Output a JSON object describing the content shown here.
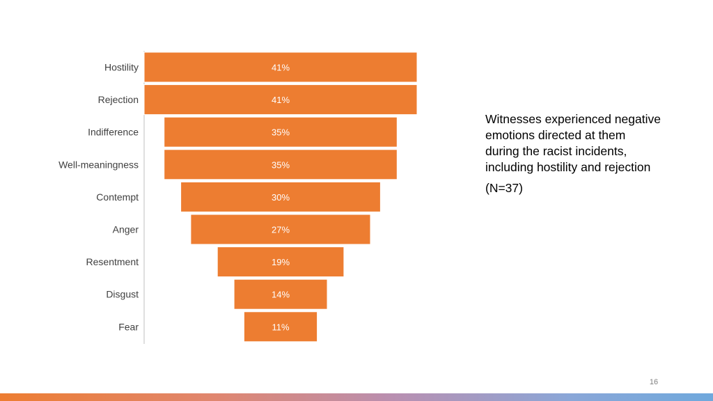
{
  "chart_data": {
    "type": "bar",
    "orientation": "horizontal-funnel",
    "categories": [
      "Hostility",
      "Rejection",
      "Indifference",
      "Well-meaningness",
      "Contempt",
      "Anger",
      "Resentment",
      "Disgust",
      "Fear"
    ],
    "values": [
      41,
      41,
      35,
      35,
      30,
      27,
      19,
      14,
      11
    ],
    "value_labels": [
      "41%",
      "41%",
      "35%",
      "35%",
      "30%",
      "27%",
      "19%",
      "14%",
      "11%"
    ],
    "unit": "%",
    "grid": false,
    "legend": "none",
    "bar_color": "#ed7d31"
  },
  "notes": {
    "line1": "Witnesses experienced negative",
    "line2": "emotions directed at them",
    "line3": "during the racist incidents,",
    "line4": "including hostility and rejection",
    "sample": "(N=37)"
  },
  "slide_number": "16",
  "colors": {
    "bar": "#ed7d31",
    "label": "#404040",
    "axis": "#bfbfbf"
  }
}
